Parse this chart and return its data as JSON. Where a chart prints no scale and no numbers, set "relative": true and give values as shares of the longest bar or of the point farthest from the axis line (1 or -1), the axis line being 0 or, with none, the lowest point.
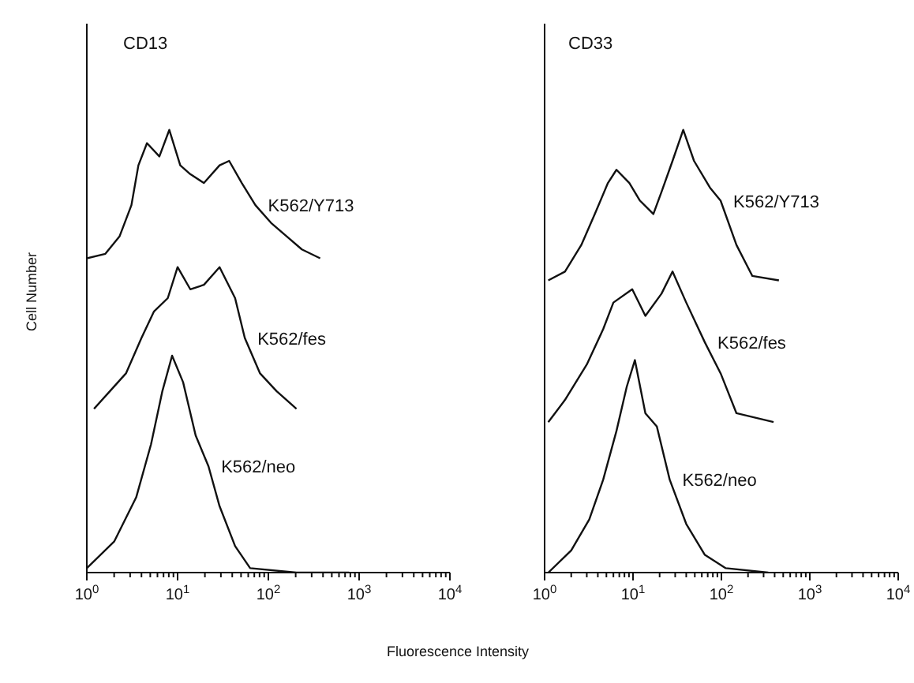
{
  "chart_data": [
    {
      "type": "line",
      "title": "CD13",
      "ylabel": "Cell Number",
      "xlabel": "Fluorescence Intensity",
      "relative": true,
      "log": "x",
      "grid": false,
      "marker": "none",
      "line_style": "solid",
      "tick_labels": "x",
      "xlim": [
        1,
        10000
      ],
      "xticks": [
        {
          "value": 1,
          "label": "10$^{0}$"
        },
        {
          "value": 2,
          "label": null
        },
        {
          "value": 3,
          "label": null
        },
        {
          "value": 4,
          "label": null
        },
        {
          "value": 5,
          "label": null
        },
        {
          "value": 6,
          "label": null
        },
        {
          "value": 7,
          "label": null
        },
        {
          "value": 8,
          "label": null
        },
        {
          "value": 9,
          "label": null
        },
        {
          "value": 10,
          "label": "10$^{1}$"
        },
        {
          "value": 20,
          "label": null
        },
        {
          "value": 30,
          "label": null
        },
        {
          "value": 40,
          "label": null
        },
        {
          "value": 50,
          "label": null
        },
        {
          "value": 60,
          "label": null
        },
        {
          "value": 70,
          "label": null
        },
        {
          "value": 80,
          "label": null
        },
        {
          "value": 90,
          "label": null
        },
        {
          "value": 100,
          "label": "10$^{2}$"
        },
        {
          "value": 200,
          "label": null
        },
        {
          "value": 300,
          "label": null
        },
        {
          "value": 400,
          "label": null
        },
        {
          "value": 500,
          "label": null
        },
        {
          "value": 600,
          "label": null
        },
        {
          "value": 700,
          "label": null
        },
        {
          "value": 800,
          "label": null
        },
        {
          "value": 900,
          "label": null
        },
        {
          "value": 1000,
          "label": "10$^{3}$"
        },
        {
          "value": 2000,
          "label": null
        },
        {
          "value": 3000,
          "label": null
        },
        {
          "value": 4000,
          "label": null
        },
        {
          "value": 5000,
          "label": null
        },
        {
          "value": 6000,
          "label": null
        },
        {
          "value": 7000,
          "label": null
        },
        {
          "value": 8000,
          "label": null
        },
        {
          "value": 9000,
          "label": null
        },
        {
          "value": 10000,
          "label": "10$^{4}$"
        }
      ],
      "series": [
        {
          "name": "K562/Y713",
          "color": "#111111",
          "x": [
            1,
            1.6,
            2.3,
            3.1,
            3.7,
            4.6,
            6.3,
            8.1,
            10.7,
            13.8,
            19.5,
            29,
            37,
            51,
            72,
            107,
            158,
            234,
            372
          ],
          "values": [
            0.71,
            0.72,
            0.76,
            0.83,
            0.92,
            0.97,
            0.94,
            1,
            0.92,
            0.9,
            0.88,
            0.92,
            0.93,
            0.88,
            0.83,
            0.79,
            0.76,
            0.73,
            0.71
          ]
        },
        {
          "name": "K562/fes",
          "color": "#111111",
          "x": [
            1.2,
            1.8,
            2.7,
            4,
            5.5,
            7.8,
            10,
            13.8,
            19.5,
            29,
            43,
            55,
            81,
            123,
            204
          ],
          "values": [
            0.37,
            0.41,
            0.45,
            0.53,
            0.59,
            0.62,
            0.69,
            0.64,
            0.65,
            0.69,
            0.62,
            0.53,
            0.45,
            0.41,
            0.37
          ]
        },
        {
          "name": "K562/neo",
          "color": "#111111",
          "x": [
            1,
            2,
            3.5,
            5.1,
            6.8,
            8.7,
            11.5,
            15.8,
            21.9,
            29,
            43,
            63,
            204,
            776
          ],
          "values": [
            0.01,
            0.07,
            0.17,
            0.29,
            0.41,
            0.49,
            0.43,
            0.31,
            0.24,
            0.15,
            0.06,
            0.01,
            0,
            0
          ]
        }
      ]
    },
    {
      "type": "line",
      "title": "CD33",
      "relative": true,
      "log": "x",
      "grid": false,
      "marker": "none",
      "line_style": "solid",
      "tick_labels": "x",
      "xlim": [
        1,
        10000
      ],
      "xticks": [
        {
          "value": 1,
          "label": "10$^{0}$"
        },
        {
          "value": 2,
          "label": null
        },
        {
          "value": 3,
          "label": null
        },
        {
          "value": 4,
          "label": null
        },
        {
          "value": 5,
          "label": null
        },
        {
          "value": 6,
          "label": null
        },
        {
          "value": 7,
          "label": null
        },
        {
          "value": 8,
          "label": null
        },
        {
          "value": 9,
          "label": null
        },
        {
          "value": 10,
          "label": "10$^{1}$"
        },
        {
          "value": 20,
          "label": null
        },
        {
          "value": 30,
          "label": null
        },
        {
          "value": 40,
          "label": null
        },
        {
          "value": 50,
          "label": null
        },
        {
          "value": 60,
          "label": null
        },
        {
          "value": 70,
          "label": null
        },
        {
          "value": 80,
          "label": null
        },
        {
          "value": 90,
          "label": null
        },
        {
          "value": 100,
          "label": "10$^{2}$"
        },
        {
          "value": 200,
          "label": null
        },
        {
          "value": 300,
          "label": null
        },
        {
          "value": 400,
          "label": null
        },
        {
          "value": 500,
          "label": null
        },
        {
          "value": 600,
          "label": null
        },
        {
          "value": 700,
          "label": null
        },
        {
          "value": 800,
          "label": null
        },
        {
          "value": 900,
          "label": null
        },
        {
          "value": 1000,
          "label": "10$^{3}$"
        },
        {
          "value": 2000,
          "label": null
        },
        {
          "value": 3000,
          "label": null
        },
        {
          "value": 4000,
          "label": null
        },
        {
          "value": 5000,
          "label": null
        },
        {
          "value": 6000,
          "label": null
        },
        {
          "value": 7000,
          "label": null
        },
        {
          "value": 8000,
          "label": null
        },
        {
          "value": 9000,
          "label": null
        },
        {
          "value": 10000,
          "label": "10$^{4}$"
        }
      ],
      "series": [
        {
          "name": "K562/Y713",
          "color": "#111111",
          "x": [
            1.1,
            1.7,
            2.6,
            3.7,
            5.2,
            6.5,
            9.1,
            12,
            17,
            21,
            28,
            37,
            49,
            74,
            98,
            148,
            224,
            447
          ],
          "values": [
            0.66,
            0.68,
            0.74,
            0.81,
            0.88,
            0.91,
            0.88,
            0.84,
            0.81,
            0.86,
            0.93,
            1,
            0.93,
            0.87,
            0.84,
            0.74,
            0.67,
            0.66
          ]
        },
        {
          "name": "K562/fes",
          "color": "#111111",
          "x": [
            1.1,
            1.7,
            3,
            4.6,
            6,
            9.8,
            13.8,
            21,
            28,
            40,
            65,
            98,
            148,
            389
          ],
          "values": [
            0.34,
            0.39,
            0.47,
            0.55,
            0.61,
            0.64,
            0.58,
            0.63,
            0.68,
            0.61,
            0.52,
            0.45,
            0.36,
            0.34
          ]
        },
        {
          "name": "K562/neo",
          "color": "#111111",
          "x": [
            1.1,
            2,
            3.2,
            4.6,
            6.5,
            8.5,
            10.5,
            13.8,
            18.6,
            26,
            40,
            65,
            112,
            339
          ],
          "values": [
            0,
            0.05,
            0.12,
            0.21,
            0.32,
            0.42,
            0.48,
            0.36,
            0.33,
            0.21,
            0.11,
            0.04,
            0.01,
            0
          ]
        }
      ]
    }
  ]
}
